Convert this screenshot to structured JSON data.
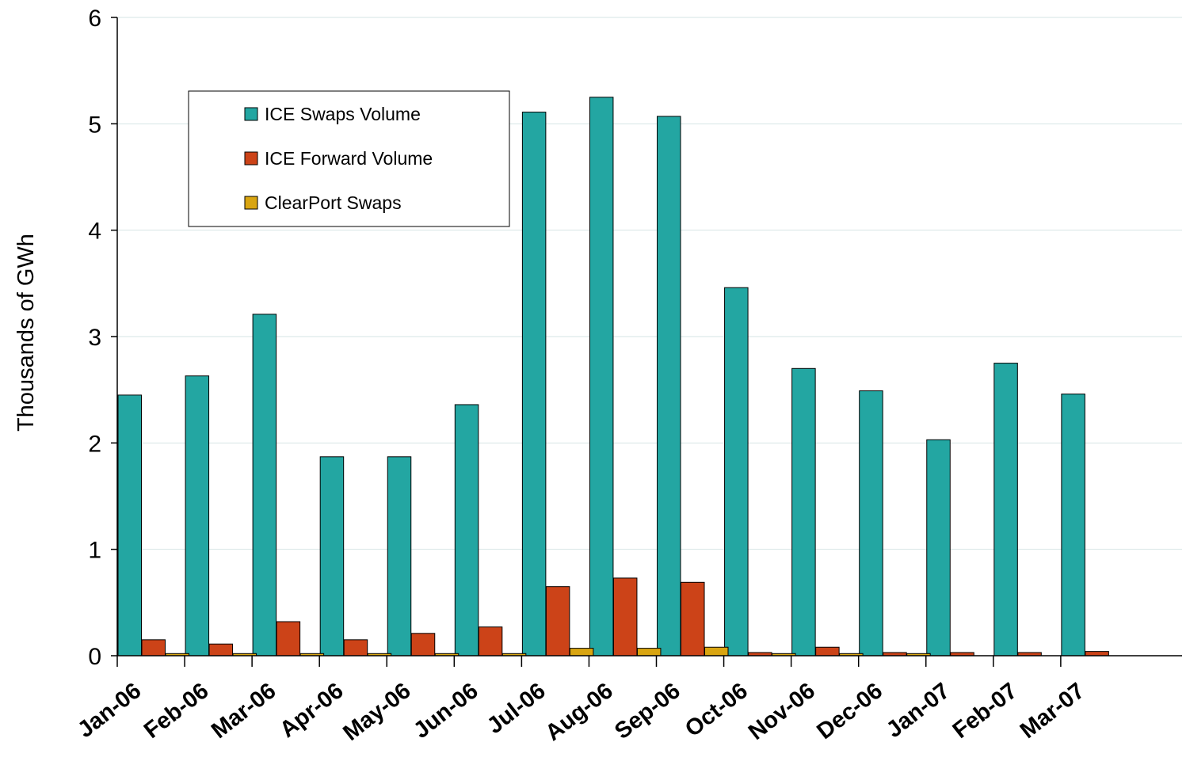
{
  "chart_data": {
    "type": "bar",
    "title": "",
    "xlabel": "",
    "ylabel": "Thousands of GWh",
    "ylim": [
      0,
      6
    ],
    "yticks": [
      0,
      1,
      2,
      3,
      4,
      5,
      6
    ],
    "grid": true,
    "legend_position": "top-left",
    "categories": [
      "Jan-06",
      "Feb-06",
      "Mar-06",
      "Apr-06",
      "May-06",
      "Jun-06",
      "Jul-06",
      "Aug-06",
      "Sep-06",
      "Oct-06",
      "Nov-06",
      "Dec-06",
      "Jan-07",
      "Feb-07",
      "Mar-07"
    ],
    "series": [
      {
        "name": "ICE Swaps Volume",
        "color": "#23A6A2",
        "values": [
          2.45,
          2.63,
          3.21,
          1.87,
          1.87,
          2.36,
          5.11,
          5.25,
          5.07,
          3.46,
          2.7,
          2.49,
          2.03,
          2.75,
          2.46
        ]
      },
      {
        "name": "ICE Forward Volume",
        "color": "#CC4318",
        "values": [
          0.15,
          0.11,
          0.32,
          0.15,
          0.21,
          0.27,
          0.65,
          0.73,
          0.69,
          0.03,
          0.08,
          0.03,
          0.03,
          0.03,
          0.04
        ]
      },
      {
        "name": "ClearPort Swaps",
        "color": "#D9A511",
        "values": [
          0.02,
          0.02,
          0.02,
          0.02,
          0.02,
          0.02,
          0.07,
          0.07,
          0.08,
          0.02,
          0.02,
          0.02,
          0,
          0,
          0
        ]
      }
    ]
  }
}
